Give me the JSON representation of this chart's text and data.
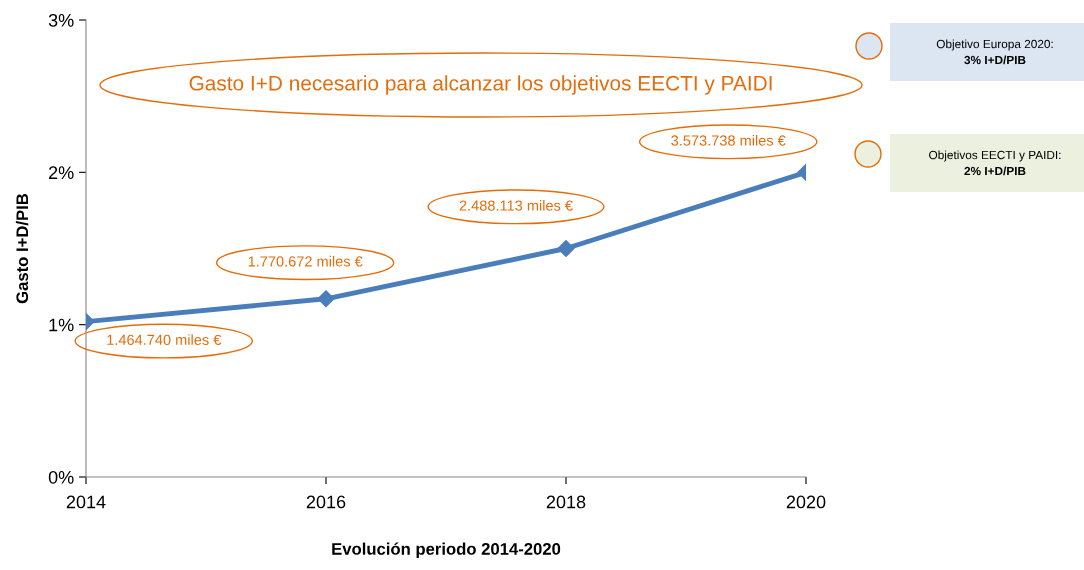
{
  "chart_data": {
    "type": "line",
    "xlabel": "Evolución periodo 2014-2020",
    "ylabel": "Gasto I+D/PIB",
    "x": [
      2014,
      2016,
      2018,
      2020
    ],
    "series": [
      {
        "color": "#4a7ebb",
        "values": [
          1.02,
          1.17,
          1.5,
          2.0
        ]
      }
    ],
    "xlim": [
      2014,
      2020
    ],
    "xticks": [
      2014,
      2016,
      2018,
      2020
    ],
    "ylim": [
      0,
      3
    ],
    "yticks": [
      {
        "value": 0,
        "label": "0%"
      },
      {
        "value": 1,
        "label": "1%"
      },
      {
        "value": 2,
        "label": "2%"
      },
      {
        "value": 3,
        "label": "3%"
      }
    ],
    "marker": "diamond",
    "line_style": "solid",
    "grid": false,
    "legend": false,
    "annotations": [
      "Gasto I+D necesario para alcanzar los objetivos EECTI y PAIDI",
      "Objetivo Europa 2020:\n3% I+D/PIB",
      "Objetivos EECTI y PAIDI:\n2% I+D/PIB",
      {
        "text": "1.464.740 miles €",
        "x": 2014,
        "y": 1.02
      },
      {
        "text": "1.770.672 miles €",
        "x": 2016,
        "y": 1.17
      },
      {
        "text": "2.488.113 miles €",
        "x": 2018,
        "y": 1.5
      },
      {
        "text": "3.573.738 miles €",
        "x": 2020,
        "y": 2.0
      }
    ]
  }
}
